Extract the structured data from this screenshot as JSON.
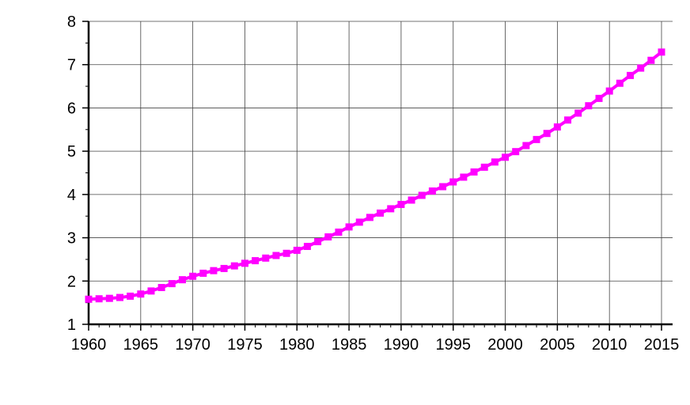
{
  "chart_data": {
    "type": "line",
    "title": "",
    "xlabel": "",
    "ylabel": "",
    "xlim": [
      1960,
      2015
    ],
    "ylim": [
      1,
      8
    ],
    "x_ticks": [
      1960,
      1965,
      1970,
      1975,
      1980,
      1985,
      1990,
      1995,
      2000,
      2005,
      2010,
      2015
    ],
    "x_tick_labels": [
      "1960",
      "1965",
      "1970",
      "1975",
      "1980",
      "1985",
      "1990",
      "1995",
      "2000",
      "2005",
      "2010",
      "2015"
    ],
    "y_ticks": [
      1,
      2,
      3,
      4,
      5,
      6,
      7,
      8
    ],
    "y_tick_labels": [
      "1",
      "2",
      "3",
      "4",
      "5",
      "6",
      "7",
      "8"
    ],
    "grid": true,
    "legend": "none",
    "series": [
      {
        "color": "#ff00ff",
        "marker": "square",
        "x": [
          1960,
          1961,
          1962,
          1963,
          1964,
          1965,
          1966,
          1967,
          1968,
          1969,
          1970,
          1971,
          1972,
          1973,
          1974,
          1975,
          1976,
          1977,
          1978,
          1979,
          1980,
          1981,
          1982,
          1983,
          1984,
          1985,
          1986,
          1987,
          1988,
          1989,
          1990,
          1991,
          1992,
          1993,
          1994,
          1995,
          1996,
          1997,
          1998,
          1999,
          2000,
          2001,
          2002,
          2003,
          2004,
          2005,
          2006,
          2007,
          2008,
          2009,
          2010,
          2011,
          2012,
          2013,
          2014,
          2015
        ],
        "y": [
          1.58,
          1.59,
          1.6,
          1.62,
          1.65,
          1.7,
          1.77,
          1.85,
          1.94,
          2.03,
          2.11,
          2.18,
          2.24,
          2.29,
          2.35,
          2.41,
          2.47,
          2.53,
          2.59,
          2.64,
          2.71,
          2.8,
          2.91,
          3.02,
          3.13,
          3.25,
          3.36,
          3.47,
          3.57,
          3.67,
          3.77,
          3.87,
          3.98,
          4.08,
          4.18,
          4.29,
          4.4,
          4.52,
          4.63,
          4.75,
          4.86,
          4.99,
          5.13,
          5.27,
          5.41,
          5.56,
          5.72,
          5.88,
          6.05,
          6.22,
          6.39,
          6.57,
          6.75,
          6.92,
          7.1,
          7.29
        ]
      }
    ]
  }
}
